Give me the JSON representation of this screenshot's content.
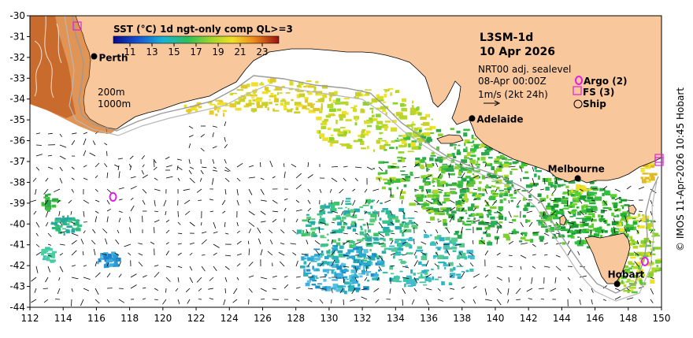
{
  "map": {
    "product": "L3SM-1d",
    "date": "10 Apr 2026",
    "colorbar": {
      "title": "SST (°C) 1d ngt-only comp QL>=3",
      "ticks": [
        "11",
        "13",
        "15",
        "17",
        "19",
        "21",
        "23"
      ],
      "range": [
        9.5,
        24.5
      ]
    },
    "x_axis": {
      "range": [
        112,
        150
      ],
      "ticks": [
        "112",
        "114",
        "116",
        "118",
        "120",
        "122",
        "124",
        "126",
        "128",
        "130",
        "132",
        "134",
        "136",
        "138",
        "140",
        "142",
        "144",
        "146",
        "148",
        "150"
      ]
    },
    "y_axis": {
      "range": [
        -44,
        -30
      ],
      "ticks": [
        "-30",
        "-31",
        "-32",
        "-33",
        "-34",
        "-35",
        "-36",
        "-37",
        "-38",
        "-39",
        "-40",
        "-41",
        "-42",
        "-43",
        "-44"
      ]
    },
    "cities": [
      {
        "name": "Perth",
        "lon": 115.86,
        "lat": -31.95
      },
      {
        "name": "Adelaide",
        "lon": 138.6,
        "lat": -34.93
      },
      {
        "name": "Melbourne",
        "lon": 144.96,
        "lat": -37.81
      },
      {
        "name": "Hobart",
        "lon": 147.33,
        "lat": -42.88
      }
    ],
    "isobath_labels": [
      "200m",
      "1000m"
    ],
    "info": {
      "altimetry": "NRT00 adj. sealevel",
      "altimetry_time": "08-Apr 00:00Z",
      "vector_scale": "1m/s (2kt 24h)"
    },
    "legend": {
      "argo": "Argo (2)",
      "fs": "FS (3)",
      "ship": "Ship"
    },
    "argo_floats": [
      {
        "lon": 117.0,
        "lat": -38.7
      },
      {
        "lon": 149.0,
        "lat": -41.8
      }
    ],
    "credit": "© IMOS 11-Apr-2026 10:45 Hobart",
    "colors": {
      "land": "#f9c79c",
      "argo": "#e020e0",
      "fs": "#e020e0"
    }
  }
}
